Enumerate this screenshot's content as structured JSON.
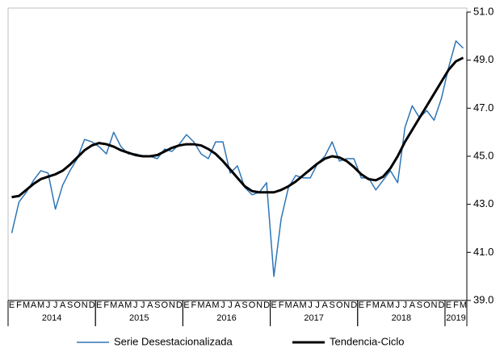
{
  "chart_data": {
    "type": "line",
    "categories": [
      "E",
      "F",
      "M",
      "A",
      "M",
      "J",
      "J",
      "A",
      "S",
      "O",
      "N",
      "D",
      "E",
      "F",
      "M",
      "A",
      "M",
      "J",
      "J",
      "A",
      "S",
      "O",
      "N",
      "D",
      "E",
      "F",
      "M",
      "A",
      "M",
      "J",
      "J",
      "A",
      "S",
      "O",
      "N",
      "D",
      "E",
      "F",
      "M",
      "A",
      "M",
      "J",
      "J",
      "A",
      "S",
      "O",
      "N",
      "D",
      "E",
      "F",
      "M",
      "A",
      "M",
      "J",
      "J",
      "A",
      "S",
      "O",
      "N",
      "D",
      "E",
      "F",
      "M"
    ],
    "years": [
      "2014",
      "2015",
      "2016",
      "2017",
      "2018",
      "2019"
    ],
    "series": [
      {
        "name": "Serie Desestacionalizada",
        "color": "#2e75b6",
        "values": [
          41.8,
          43.1,
          43.5,
          44.0,
          44.4,
          44.3,
          42.8,
          43.8,
          44.4,
          44.9,
          45.7,
          45.6,
          45.4,
          45.1,
          46.0,
          45.4,
          45.1,
          45.1,
          45.0,
          45.0,
          44.9,
          45.3,
          45.2,
          45.5,
          45.9,
          45.6,
          45.1,
          44.9,
          45.6,
          45.6,
          44.3,
          44.6,
          43.7,
          43.4,
          43.5,
          43.9,
          40.0,
          42.4,
          43.7,
          44.2,
          44.1,
          44.1,
          44.7,
          45.0,
          45.6,
          44.8,
          44.9,
          44.9,
          44.1,
          44.1,
          43.6,
          44.0,
          44.4,
          43.9,
          46.2,
          47.1,
          46.6,
          46.9,
          46.5,
          47.4,
          48.7,
          49.8,
          49.5
        ]
      },
      {
        "name": "Tendencia-Ciclo",
        "color": "#000000",
        "values": [
          43.3,
          43.35,
          43.6,
          43.85,
          44.05,
          44.15,
          44.25,
          44.4,
          44.65,
          44.95,
          45.25,
          45.45,
          45.55,
          45.5,
          45.4,
          45.25,
          45.15,
          45.05,
          45.0,
          45.0,
          45.05,
          45.2,
          45.35,
          45.45,
          45.5,
          45.5,
          45.45,
          45.3,
          45.1,
          44.8,
          44.45,
          44.1,
          43.75,
          43.55,
          43.5,
          43.5,
          43.5,
          43.6,
          43.75,
          43.95,
          44.2,
          44.45,
          44.7,
          44.9,
          45.0,
          44.95,
          44.8,
          44.55,
          44.25,
          44.05,
          44.0,
          44.15,
          44.5,
          45.0,
          45.6,
          46.1,
          46.6,
          47.1,
          47.6,
          48.1,
          48.6,
          48.95,
          49.1
        ]
      }
    ],
    "ylim": [
      39,
      51
    ],
    "yticks": [
      {
        "value": 39,
        "label": "39.0"
      },
      {
        "value": 41,
        "label": "41.0"
      },
      {
        "value": 43,
        "label": "43.0"
      },
      {
        "value": 45,
        "label": "45.0"
      },
      {
        "value": 47,
        "label": "47.0"
      },
      {
        "value": 49,
        "label": "49.0"
      },
      {
        "value": 51,
        "label": "51.0"
      }
    ],
    "y_axis_side": "right"
  }
}
